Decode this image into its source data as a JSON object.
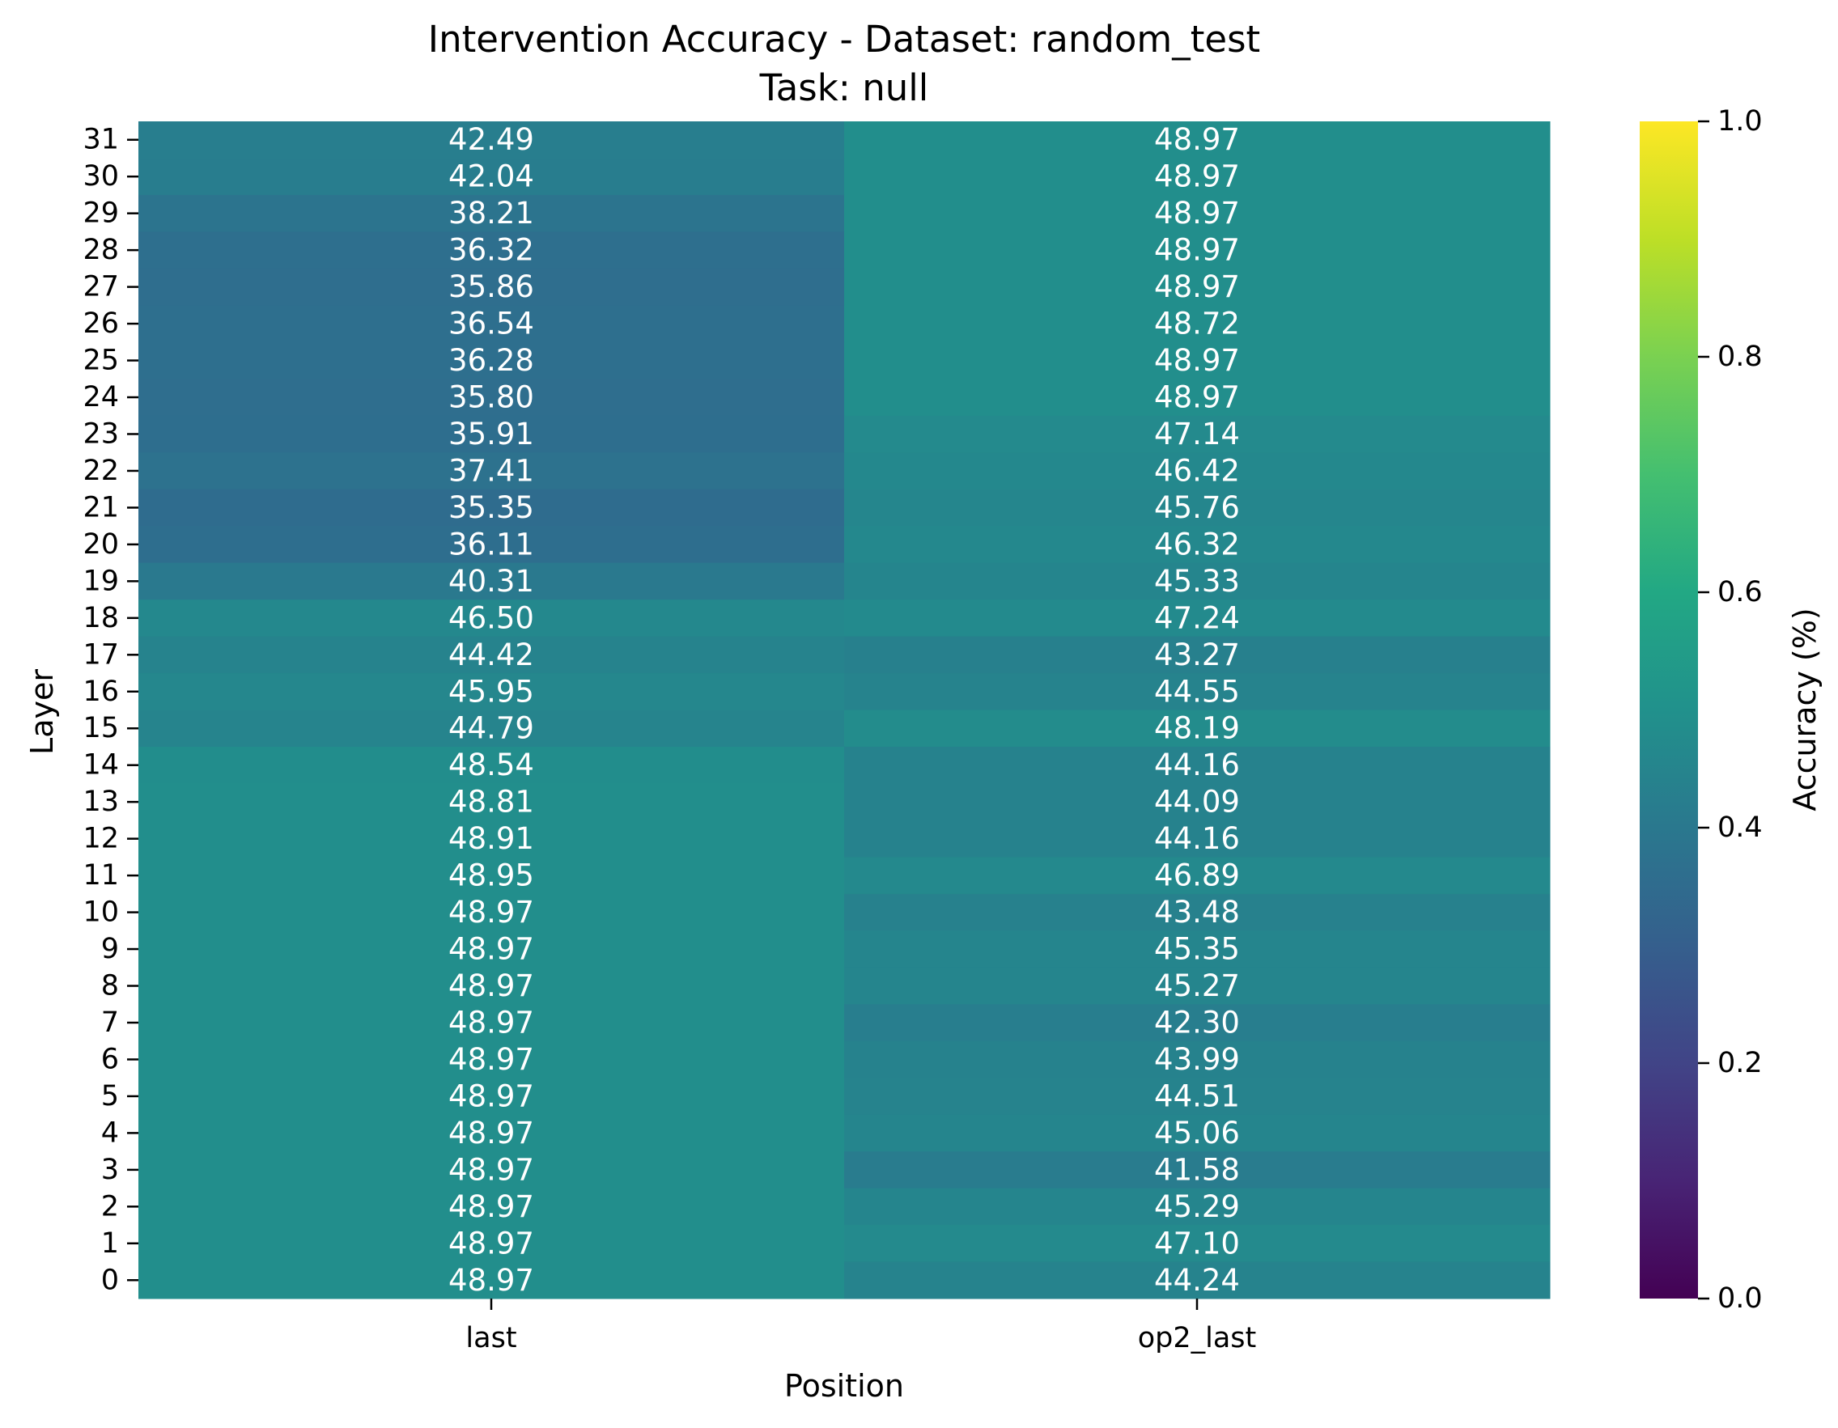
{
  "chart_data": {
    "type": "heatmap",
    "title": "Intervention Accuracy - Dataset: random_test",
    "subtitle": "Task: null",
    "xlabel": "Position",
    "ylabel": "Layer",
    "columns": [
      "last",
      "op2_last"
    ],
    "rows": [
      "31",
      "30",
      "29",
      "28",
      "27",
      "26",
      "25",
      "24",
      "23",
      "22",
      "21",
      "20",
      "19",
      "18",
      "17",
      "16",
      "15",
      "14",
      "13",
      "12",
      "11",
      "10",
      "9",
      "8",
      "7",
      "6",
      "5",
      "4",
      "3",
      "2",
      "1",
      "0"
    ],
    "values": [
      [
        42.49,
        48.97
      ],
      [
        42.04,
        48.97
      ],
      [
        38.21,
        48.97
      ],
      [
        36.32,
        48.97
      ],
      [
        35.86,
        48.97
      ],
      [
        36.54,
        48.72
      ],
      [
        36.28,
        48.97
      ],
      [
        35.8,
        48.97
      ],
      [
        35.91,
        47.14
      ],
      [
        37.41,
        46.42
      ],
      [
        35.35,
        45.76
      ],
      [
        36.11,
        46.32
      ],
      [
        40.31,
        45.33
      ],
      [
        46.5,
        47.24
      ],
      [
        44.42,
        43.27
      ],
      [
        45.95,
        44.55
      ],
      [
        44.79,
        48.19
      ],
      [
        48.54,
        44.16
      ],
      [
        48.81,
        44.09
      ],
      [
        48.91,
        44.16
      ],
      [
        48.95,
        46.89
      ],
      [
        48.97,
        43.48
      ],
      [
        48.97,
        45.35
      ],
      [
        48.97,
        45.27
      ],
      [
        48.97,
        42.3
      ],
      [
        48.97,
        43.99
      ],
      [
        48.97,
        44.51
      ],
      [
        48.97,
        45.06
      ],
      [
        48.97,
        41.58
      ],
      [
        48.97,
        45.29
      ],
      [
        48.97,
        47.1
      ],
      [
        48.97,
        44.24
      ]
    ],
    "value_format": "2 decimals",
    "colormap": "viridis",
    "colorbar": {
      "label": "Accuracy (%)",
      "range": [
        0.0,
        1.0
      ],
      "ticks": [
        "0.0",
        "0.2",
        "0.4",
        "0.6",
        "0.8",
        "1.0"
      ]
    },
    "annotation_color": "#ffffff"
  }
}
